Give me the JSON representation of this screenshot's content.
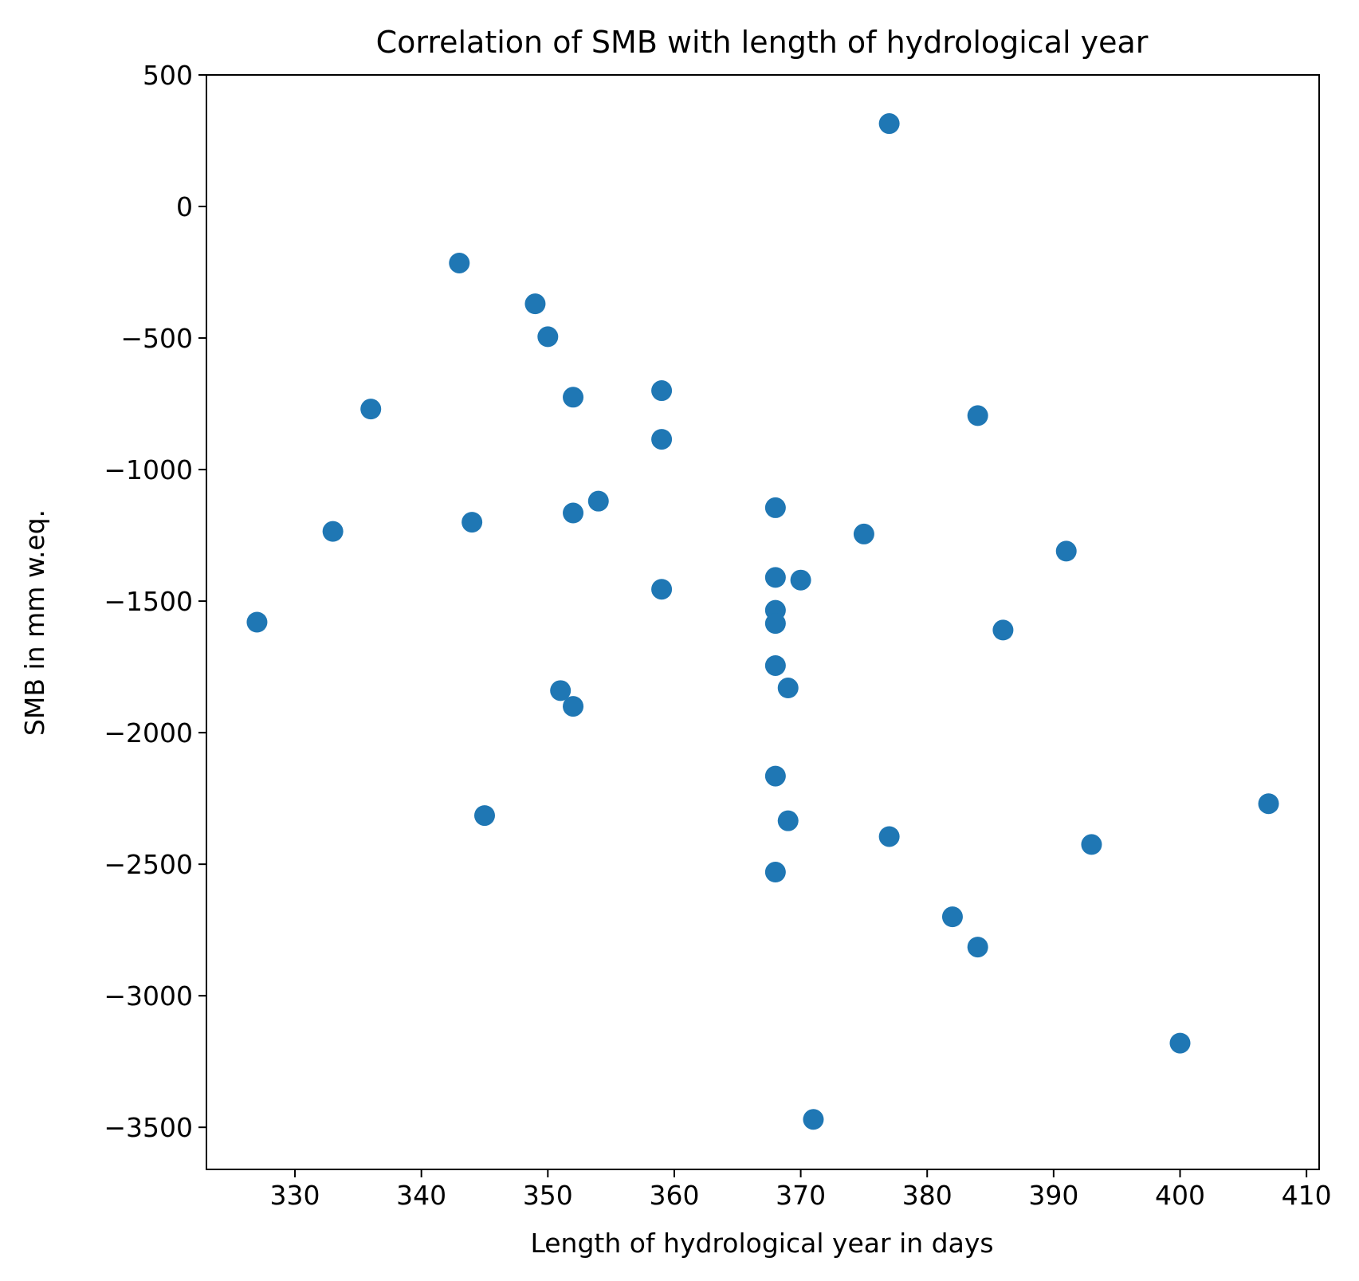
{
  "chart_data": {
    "type": "scatter",
    "title": "Correlation of SMB with length of hydrological year",
    "xlabel": "Length of hydrological year in days",
    "ylabel": "SMB in mm w.eq.",
    "xlim": [
      323,
      411
    ],
    "ylim": [
      -3660,
      500
    ],
    "xticks": [
      330,
      340,
      350,
      360,
      370,
      380,
      390,
      400,
      410
    ],
    "yticks": [
      500,
      0,
      -500,
      -1000,
      -1500,
      -2000,
      -2500,
      -3000,
      -3500
    ],
    "grid": false,
    "legend": "none",
    "marker_color": "#1f77b4",
    "points": [
      {
        "x": 377,
        "y": 315
      },
      {
        "x": 343,
        "y": -215
      },
      {
        "x": 349,
        "y": -370
      },
      {
        "x": 350,
        "y": -495
      },
      {
        "x": 352,
        "y": -725
      },
      {
        "x": 359,
        "y": -700
      },
      {
        "x": 336,
        "y": -770
      },
      {
        "x": 384,
        "y": -795
      },
      {
        "x": 359,
        "y": -885
      },
      {
        "x": 354,
        "y": -1120
      },
      {
        "x": 368,
        "y": -1145
      },
      {
        "x": 352,
        "y": -1165
      },
      {
        "x": 344,
        "y": -1200
      },
      {
        "x": 333,
        "y": -1235
      },
      {
        "x": 375,
        "y": -1245
      },
      {
        "x": 391,
        "y": -1310
      },
      {
        "x": 368,
        "y": -1410
      },
      {
        "x": 370,
        "y": -1420
      },
      {
        "x": 359,
        "y": -1455
      },
      {
        "x": 368,
        "y": -1535
      },
      {
        "x": 327,
        "y": -1580
      },
      {
        "x": 368,
        "y": -1585
      },
      {
        "x": 386,
        "y": -1610
      },
      {
        "x": 368,
        "y": -1745
      },
      {
        "x": 369,
        "y": -1830
      },
      {
        "x": 351,
        "y": -1840
      },
      {
        "x": 352,
        "y": -1900
      },
      {
        "x": 368,
        "y": -2165
      },
      {
        "x": 407,
        "y": -2270
      },
      {
        "x": 345,
        "y": -2315
      },
      {
        "x": 369,
        "y": -2335
      },
      {
        "x": 377,
        "y": -2395
      },
      {
        "x": 393,
        "y": -2425
      },
      {
        "x": 368,
        "y": -2530
      },
      {
        "x": 382,
        "y": -2700
      },
      {
        "x": 384,
        "y": -2815
      },
      {
        "x": 400,
        "y": -3180
      },
      {
        "x": 371,
        "y": -3470
      }
    ]
  }
}
